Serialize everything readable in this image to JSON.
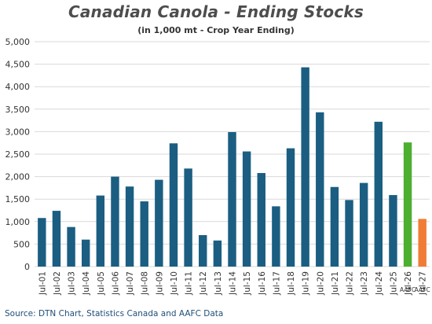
{
  "chart_data": {
    "type": "bar",
    "title": "Canadian Canola - Ending Stocks",
    "subtitle": "(in 1,000 mt - Crop Year Ending)",
    "categories": [
      "Jul-01",
      "Jul-02",
      "Jul-03",
      "Jul-04",
      "Jul-05",
      "Jul-06",
      "Jul-07",
      "Jul-08",
      "Jul-09",
      "Jul-10",
      "Jul-11",
      "Jul-12",
      "Jul-13",
      "Jul-14",
      "Jul-15",
      "Jul-16",
      "Jul-17",
      "Jul-18",
      "Jul-19",
      "Jul-20",
      "Jul-21",
      "Jul-22",
      "Jul-23",
      "Jul-24",
      "Jul-25",
      "Jul-26",
      "Jul-27"
    ],
    "category_notes": [
      "",
      "",
      "",
      "",
      "",
      "",
      "",
      "",
      "",
      "",
      "",
      "",
      "",
      "",
      "",
      "",
      "",
      "",
      "",
      "",
      "",
      "",
      "",
      "",
      "",
      "AAFC APR",
      "AAFC APR"
    ],
    "values": [
      1080,
      1240,
      880,
      600,
      1580,
      2000,
      1780,
      1450,
      1930,
      2740,
      2180,
      700,
      580,
      2990,
      2560,
      2080,
      1340,
      2630,
      4430,
      3430,
      1770,
      1480,
      1860,
      3220,
      1590,
      2760,
      1060
    ],
    "bar_colors": [
      "#1b5e82",
      "#1b5e82",
      "#1b5e82",
      "#1b5e82",
      "#1b5e82",
      "#1b5e82",
      "#1b5e82",
      "#1b5e82",
      "#1b5e82",
      "#1b5e82",
      "#1b5e82",
      "#1b5e82",
      "#1b5e82",
      "#1b5e82",
      "#1b5e82",
      "#1b5e82",
      "#1b5e82",
      "#1b5e82",
      "#1b5e82",
      "#1b5e82",
      "#1b5e82",
      "#1b5e82",
      "#1b5e82",
      "#1b5e82",
      "#1b5e82",
      "#4caf2f",
      "#f07c36"
    ],
    "ylim": [
      0,
      5000
    ],
    "yticks": [
      0,
      500,
      1000,
      1500,
      2000,
      2500,
      3000,
      3500,
      4000,
      4500,
      5000
    ],
    "ytick_labels": [
      "0",
      "500",
      "1,000",
      "1,500",
      "2,000",
      "2,500",
      "3,000",
      "3,500",
      "4,000",
      "4,500",
      "5,000"
    ],
    "grid": true,
    "xlabel": "",
    "ylabel": ""
  },
  "source": "Source: DTN Chart, Statistics Canada and AAFC Data",
  "colors": {
    "grid": "#d9d9d9",
    "axis_text": "#333333"
  }
}
